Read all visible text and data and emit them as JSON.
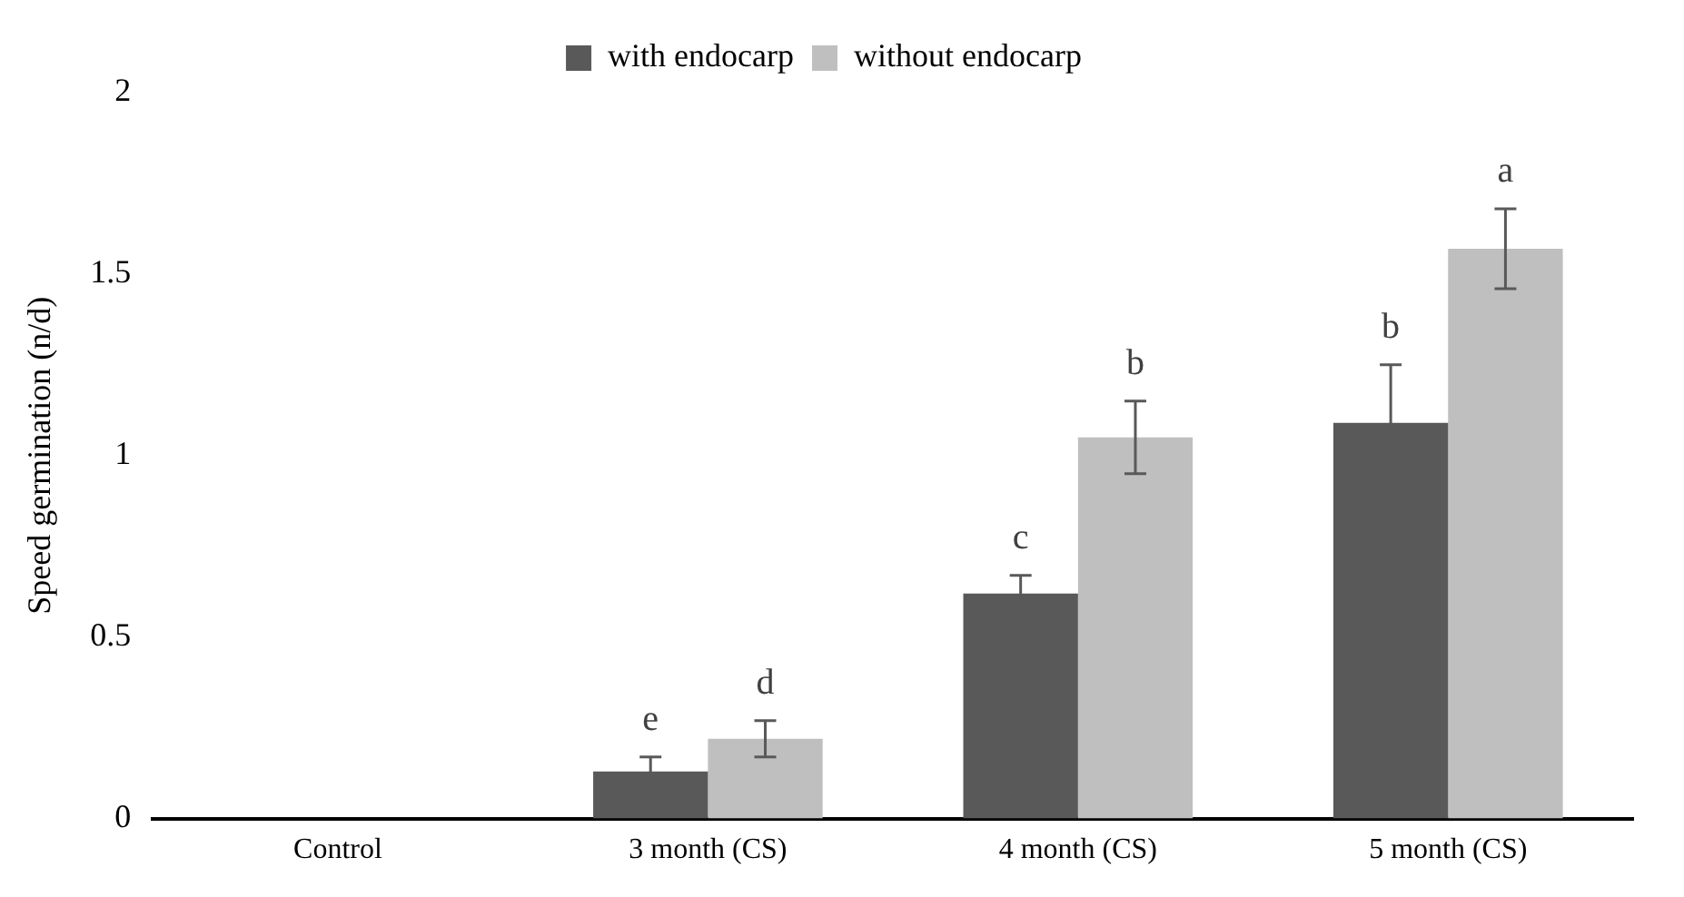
{
  "chart_data": {
    "type": "bar",
    "ylabel": "Speed germination (n/d)",
    "categories": [
      "Control",
      "3 month (CS)",
      "4 month (CS)",
      "5 month (CS)"
    ],
    "series": [
      {
        "name": "with endocarp",
        "color": "#595959",
        "values": [
          0,
          0.13,
          0.62,
          1.09
        ],
        "errors": [
          null,
          0.04,
          0.05,
          0.16
        ],
        "value_labels": [
          null,
          "e",
          "c",
          "b"
        ]
      },
      {
        "name": "without endocarp",
        "color": "#bfbfbf",
        "values": [
          0,
          0.22,
          1.05,
          1.57
        ],
        "errors": [
          null,
          0.05,
          0.1,
          0.11
        ],
        "value_labels": [
          null,
          "d",
          "b",
          "a"
        ]
      }
    ],
    "ylim": [
      0,
      2
    ],
    "yticks": [
      0,
      0.5,
      1,
      1.5,
      2
    ],
    "grid": false,
    "legend": "top"
  }
}
